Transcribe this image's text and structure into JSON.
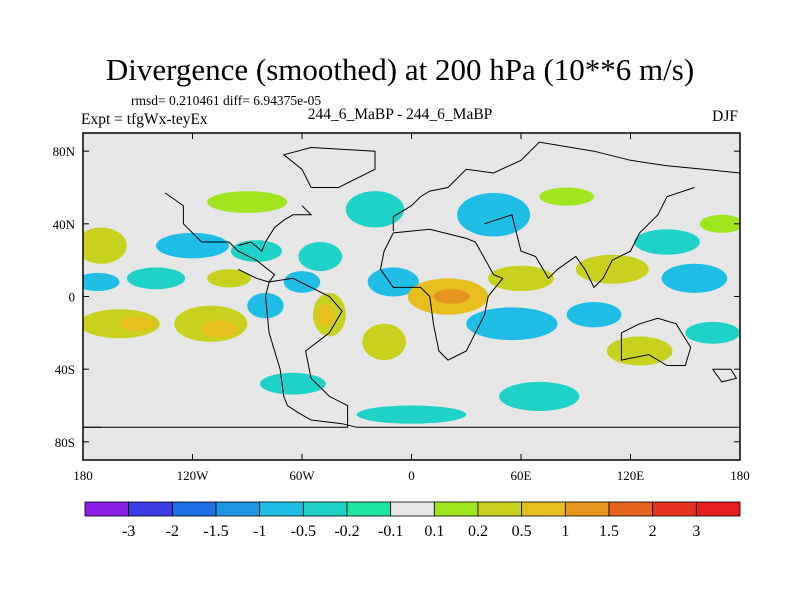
{
  "chart_data": {
    "type": "heatmap",
    "title": "Divergence (smoothed) at 200 hPa (10**6 m/s)",
    "stats_text": "rmsd= 0.210461 diff= 6.94375e-05",
    "left_label": "Expt = tfgWx-teyEx",
    "center_label": "244_6_MaBP - 244_6_MaBP",
    "right_label": "DJF",
    "x_axis": {
      "range": [
        -180,
        180
      ],
      "ticks": [
        -180,
        -120,
        -60,
        0,
        60,
        120,
        180
      ],
      "tick_labels": [
        "180",
        "120W",
        "60W",
        "0",
        "60E",
        "120E",
        "180"
      ]
    },
    "y_axis": {
      "range": [
        -90,
        90
      ],
      "ticks": [
        80,
        40,
        0,
        -40,
        -80
      ],
      "tick_labels": [
        "80N",
        "40N",
        "0",
        "40S",
        "80S"
      ]
    },
    "colorbar": {
      "levels": [
        "-3",
        "-2",
        "-1.5",
        "-1",
        "-0.5",
        "-0.2",
        "-0.1",
        "0.1",
        "0.2",
        "0.5",
        "1",
        "1.5",
        "2",
        "3"
      ],
      "colors": [
        "#8a1ee6",
        "#3c3ce6",
        "#1e6ee6",
        "#1e96e6",
        "#1ebee6",
        "#1ed2c8",
        "#1ee6a0",
        "#e6e6e6",
        "#a0e61e",
        "#c8d21e",
        "#e6be1e",
        "#e6961e",
        "#e6641e",
        "#e6321e",
        "#e61e1e"
      ]
    },
    "background_value_color": "#e6e6e6",
    "blobs": [
      {
        "lon": -170,
        "lat": 28,
        "rx": 14,
        "ry": 10,
        "level": "#c8d21e"
      },
      {
        "lon": -172,
        "lat": 8,
        "rx": 12,
        "ry": 5,
        "level": "#1ebee6"
      },
      {
        "lon": -160,
        "lat": -15,
        "rx": 22,
        "ry": 8,
        "level": "#c8d21e"
      },
      {
        "lon": -150,
        "lat": -15,
        "rx": 10,
        "ry": 4,
        "level": "#e6be1e"
      },
      {
        "lon": -140,
        "lat": 10,
        "rx": 16,
        "ry": 6,
        "level": "#1ed2c8"
      },
      {
        "lon": -120,
        "lat": 28,
        "rx": 20,
        "ry": 7,
        "level": "#1ebee6"
      },
      {
        "lon": -110,
        "lat": -15,
        "rx": 20,
        "ry": 10,
        "level": "#c8d21e"
      },
      {
        "lon": -105,
        "lat": -18,
        "rx": 10,
        "ry": 5,
        "level": "#e6be1e"
      },
      {
        "lon": -100,
        "lat": 10,
        "rx": 12,
        "ry": 5,
        "level": "#c8d21e"
      },
      {
        "lon": -90,
        "lat": 52,
        "rx": 22,
        "ry": 6,
        "level": "#a0e61e"
      },
      {
        "lon": -85,
        "lat": 25,
        "rx": 14,
        "ry": 6,
        "level": "#1ed2c8"
      },
      {
        "lon": -80,
        "lat": -5,
        "rx": 10,
        "ry": 7,
        "level": "#1ebee6"
      },
      {
        "lon": -65,
        "lat": -48,
        "rx": 18,
        "ry": 6,
        "level": "#1ed2c8"
      },
      {
        "lon": -60,
        "lat": 8,
        "rx": 10,
        "ry": 6,
        "level": "#1ebee6"
      },
      {
        "lon": -50,
        "lat": 22,
        "rx": 12,
        "ry": 8,
        "level": "#1ed2c8"
      },
      {
        "lon": -45,
        "lat": -10,
        "rx": 9,
        "ry": 12,
        "level": "#c8d21e"
      },
      {
        "lon": -47,
        "lat": -10,
        "rx": 5,
        "ry": 6,
        "level": "#e6be1e"
      },
      {
        "lon": -20,
        "lat": 48,
        "rx": 16,
        "ry": 10,
        "level": "#1ed2c8"
      },
      {
        "lon": -10,
        "lat": 8,
        "rx": 14,
        "ry": 8,
        "level": "#1ebee6"
      },
      {
        "lon": -15,
        "lat": -25,
        "rx": 12,
        "ry": 10,
        "level": "#c8d21e"
      },
      {
        "lon": 0,
        "lat": -65,
        "rx": 30,
        "ry": 5,
        "level": "#1ed2c8"
      },
      {
        "lon": 20,
        "lat": 0,
        "rx": 22,
        "ry": 10,
        "level": "#e6be1e"
      },
      {
        "lon": 22,
        "lat": 0,
        "rx": 10,
        "ry": 4,
        "level": "#e6961e"
      },
      {
        "lon": 45,
        "lat": 45,
        "rx": 20,
        "ry": 12,
        "level": "#1ebee6"
      },
      {
        "lon": 55,
        "lat": -15,
        "rx": 25,
        "ry": 9,
        "level": "#1ebee6"
      },
      {
        "lon": 60,
        "lat": 10,
        "rx": 18,
        "ry": 7,
        "level": "#c8d21e"
      },
      {
        "lon": 70,
        "lat": -55,
        "rx": 22,
        "ry": 8,
        "level": "#1ed2c8"
      },
      {
        "lon": 85,
        "lat": 55,
        "rx": 15,
        "ry": 5,
        "level": "#a0e61e"
      },
      {
        "lon": 100,
        "lat": -10,
        "rx": 15,
        "ry": 7,
        "level": "#1ebee6"
      },
      {
        "lon": 110,
        "lat": 15,
        "rx": 20,
        "ry": 8,
        "level": "#c8d21e"
      },
      {
        "lon": 125,
        "lat": -30,
        "rx": 18,
        "ry": 8,
        "level": "#c8d21e"
      },
      {
        "lon": 140,
        "lat": 30,
        "rx": 18,
        "ry": 7,
        "level": "#1ed2c8"
      },
      {
        "lon": 155,
        "lat": 10,
        "rx": 18,
        "ry": 8,
        "level": "#1ebee6"
      },
      {
        "lon": 165,
        "lat": -20,
        "rx": 15,
        "ry": 6,
        "level": "#1ed2c8"
      },
      {
        "lon": 170,
        "lat": 40,
        "rx": 12,
        "ry": 5,
        "level": "#a0e61e"
      }
    ]
  }
}
